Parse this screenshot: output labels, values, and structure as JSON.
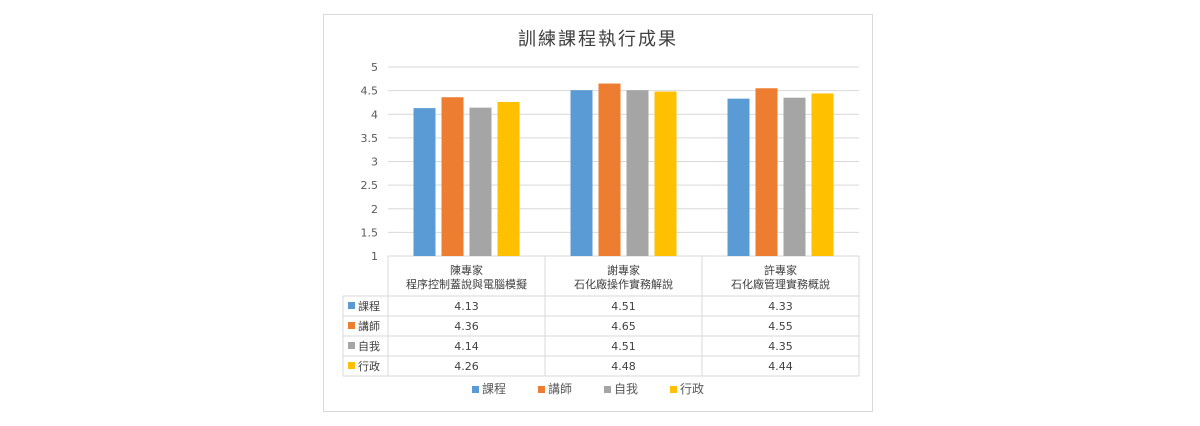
{
  "title": "訓練課程執行成果",
  "chart_data": {
    "type": "bar",
    "title": "訓練課程執行成果",
    "categories": [
      [
        "陳專家",
        "程序控制蓋說與電腦模擬"
      ],
      [
        "謝專家",
        "石化廠操作實務解說"
      ],
      [
        "許專家",
        "石化廠管理實務概說"
      ]
    ],
    "series": [
      {
        "name": "課程",
        "color": "#5b9bd5",
        "values": [
          4.13,
          4.51,
          4.33
        ]
      },
      {
        "name": "講師",
        "color": "#ed7d31",
        "values": [
          4.36,
          4.65,
          4.55
        ]
      },
      {
        "name": "自我",
        "color": "#a5a5a5",
        "values": [
          4.14,
          4.51,
          4.35
        ]
      },
      {
        "name": "行政",
        "color": "#ffc000",
        "values": [
          4.26,
          4.48,
          4.44
        ]
      }
    ],
    "ylim": [
      1,
      5
    ],
    "yticks": [
      "1",
      "1.5",
      "2",
      "2.5",
      "3",
      "3.5",
      "4",
      "4.5",
      "5"
    ],
    "grid": true,
    "legend": "bottom",
    "data_table": true
  }
}
